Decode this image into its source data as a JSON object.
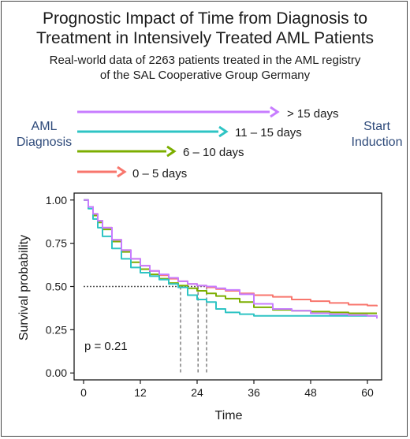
{
  "header": {
    "title_line1": "Prognostic Impact of Time from Diagnosis to",
    "title_line2": "Treatment in Intensively Treated AML Patients",
    "subtitle_line1": "Real-world data of 2263 patients treated in the AML registry",
    "subtitle_line2": "of the SAL Cooperative Group Germany"
  },
  "timeline": {
    "left_label_line1": "AML",
    "left_label_line2": "Diagnosis",
    "right_label_line1": "Start",
    "right_label_line2": "Induction",
    "arrows": [
      {
        "label": "> 15 days",
        "color": "#c77cff"
      },
      {
        "label": "11 – 15 days",
        "color": "#2ec4c4"
      },
      {
        "label": "6 – 10 days",
        "color": "#7cae00"
      },
      {
        "label": "0 – 5 days",
        "color": "#f8766d"
      }
    ]
  },
  "chart_data": {
    "type": "line",
    "xlabel": "Time",
    "ylabel": "Survival probability",
    "xlim": [
      -2,
      63
    ],
    "ylim": [
      -0.04,
      1.04
    ],
    "xticks": [
      "0",
      "12",
      "24",
      "36",
      "48",
      "60"
    ],
    "yticks": [
      "0.00",
      "0.25",
      "0.50",
      "0.75",
      "1.00"
    ],
    "annotation": "p = 0.21",
    "median_line": {
      "y": 0.5,
      "medians": [
        20.5,
        24.2,
        26.0
      ]
    },
    "series": [
      {
        "name": "0 – 5 days",
        "color": "#f8766d",
        "x": [
          0,
          1,
          2,
          3,
          4,
          6,
          8,
          10,
          12,
          14,
          16,
          18,
          20,
          22,
          24,
          26,
          28,
          30,
          33,
          36,
          40,
          44,
          48,
          52,
          56,
          60,
          62
        ],
        "y": [
          1.0,
          0.96,
          0.92,
          0.88,
          0.84,
          0.77,
          0.71,
          0.66,
          0.62,
          0.59,
          0.565,
          0.545,
          0.53,
          0.515,
          0.505,
          0.495,
          0.485,
          0.475,
          0.46,
          0.45,
          0.44,
          0.425,
          0.415,
          0.405,
          0.395,
          0.39,
          0.385
        ]
      },
      {
        "name": "6 – 10 days",
        "color": "#7cae00",
        "x": [
          0,
          1,
          2,
          3,
          4,
          6,
          8,
          10,
          12,
          14,
          16,
          18,
          20,
          22,
          24,
          26,
          28,
          30,
          33,
          36,
          40,
          44,
          48,
          52,
          56,
          60,
          62
        ],
        "y": [
          1.0,
          0.96,
          0.91,
          0.87,
          0.83,
          0.76,
          0.7,
          0.64,
          0.6,
          0.57,
          0.545,
          0.52,
          0.505,
          0.49,
          0.475,
          0.46,
          0.445,
          0.43,
          0.41,
          0.38,
          0.365,
          0.36,
          0.355,
          0.35,
          0.345,
          0.345,
          0.345
        ]
      },
      {
        "name": "11 – 15 days",
        "color": "#2ec4c4",
        "x": [
          0,
          1,
          2,
          3,
          4,
          6,
          8,
          10,
          12,
          14,
          16,
          18,
          20,
          22,
          24,
          26,
          28,
          30,
          33,
          36,
          40,
          44,
          48,
          52,
          56,
          60,
          62
        ],
        "y": [
          1.0,
          0.95,
          0.89,
          0.84,
          0.79,
          0.72,
          0.66,
          0.61,
          0.58,
          0.56,
          0.54,
          0.515,
          0.495,
          0.45,
          0.425,
          0.41,
          0.37,
          0.35,
          0.34,
          0.33,
          0.33,
          0.33,
          0.33,
          0.33,
          0.33,
          0.33,
          0.33
        ]
      },
      {
        "name": "> 15 days",
        "color": "#c77cff",
        "x": [
          0,
          1,
          2,
          3,
          4,
          6,
          8,
          10,
          12,
          14,
          16,
          18,
          20,
          22,
          24,
          26,
          28,
          30,
          33,
          36,
          40,
          44,
          48,
          52,
          56,
          60,
          62
        ],
        "y": [
          1.0,
          0.96,
          0.92,
          0.88,
          0.84,
          0.77,
          0.71,
          0.66,
          0.62,
          0.59,
          0.57,
          0.55,
          0.53,
          0.515,
          0.505,
          0.5,
          0.49,
          0.48,
          0.455,
          0.4,
          0.37,
          0.36,
          0.345,
          0.34,
          0.335,
          0.33,
          0.315
        ]
      }
    ]
  }
}
